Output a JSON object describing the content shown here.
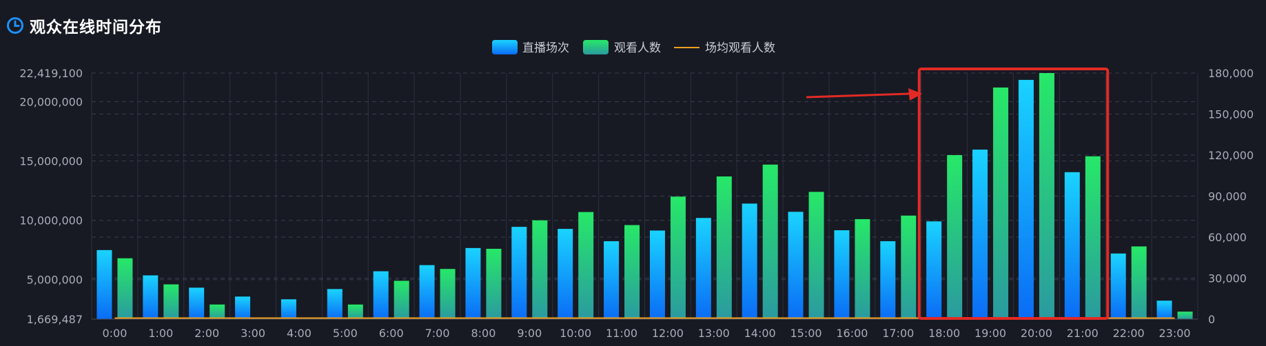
{
  "header": {
    "title": "观众在线时间分布",
    "icon": "clock-icon"
  },
  "colors": {
    "background": "#171a23",
    "accent_blue": "#1e90ff",
    "sessions_top": "#1ad3ff",
    "sessions_bottom": "#0a6cf5",
    "viewers_top": "#27e868",
    "viewers_bottom": "#2a9aa0",
    "avg_line": "#f0a020",
    "highlight_box": "#e22a25",
    "arrow": "#e22a25"
  },
  "chart_data": {
    "type": "bar",
    "categories": [
      "0:00",
      "1:00",
      "2:00",
      "3:00",
      "4:00",
      "5:00",
      "6:00",
      "7:00",
      "8:00",
      "9:00",
      "10:00",
      "11:00",
      "12:00",
      "13:00",
      "14:00",
      "15:00",
      "16:00",
      "17:00",
      "18:00",
      "19:00",
      "20:00",
      "21:00",
      "22:00",
      "23:00"
    ],
    "legend": [
      "直播场次",
      "观看人数",
      "场均观看人数"
    ],
    "legend_position": "top-center",
    "grid": true,
    "left_axis": {
      "ticks": [
        1669487,
        5000000,
        10000000,
        15000000,
        20000000,
        22419100
      ],
      "tick_labels": [
        "1,669,487",
        "5,000,000",
        "10,000,000",
        "15,000,000",
        "20,000,000",
        "22,419,100"
      ],
      "range": [
        1669487,
        22419100
      ]
    },
    "right_axis": {
      "ticks": [
        0,
        30000,
        60000,
        90000,
        120000,
        150000,
        180000
      ],
      "tick_labels": [
        "0",
        "30,000",
        "60,000",
        "90,000",
        "120,000",
        "150,000",
        "180,000"
      ],
      "range": [
        0,
        180000
      ]
    },
    "series": [
      {
        "name": "直播场次",
        "axis": "right",
        "values": [
          50500,
          32000,
          23000,
          16500,
          14500,
          22000,
          35000,
          39500,
          52000,
          67500,
          66000,
          57000,
          64800,
          74000,
          84500,
          78500,
          65000,
          57000,
          71500,
          124000,
          175000,
          107500,
          48000,
          13500
        ]
      },
      {
        "name": "观看人数",
        "axis": "left",
        "values": [
          6800000,
          4600000,
          2900000,
          0,
          0,
          2900000,
          4900000,
          5900000,
          7600000,
          10000000,
          10700000,
          9600000,
          12000000,
          13700000,
          14700000,
          12400000,
          10100000,
          10400000,
          15500000,
          21200000,
          22419100,
          15400000,
          7800000,
          2300000
        ]
      },
      {
        "name": "场均观看人数",
        "axis": "right",
        "type": "line",
        "values": [
          0,
          0,
          0,
          0,
          0,
          0,
          0,
          0,
          0,
          0,
          0,
          0,
          0,
          0,
          0,
          0,
          0,
          0,
          0,
          0,
          0,
          0,
          0,
          0
        ]
      }
    ],
    "highlight": {
      "from": "18:00",
      "to": "21:00"
    }
  }
}
